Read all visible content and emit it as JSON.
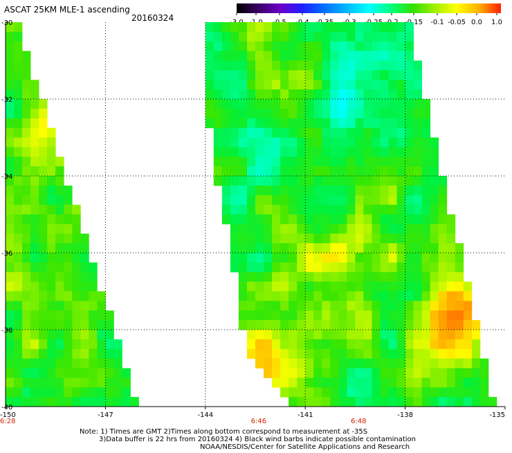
{
  "chart_data": {
    "type": "heatmap",
    "title": "ASCAT 25KM MLE-1 ascending",
    "date": "20160324",
    "colorbar": {
      "tick_labels": [
        "-3.0",
        "-1.0",
        "-0.5",
        "-0.4",
        "-0.35",
        "-0.3",
        "-0.25",
        "-0.2",
        "-0.15",
        "-0.1",
        "-0.05",
        "0.0",
        "1.0"
      ],
      "colors": [
        "#000000",
        "#3b0066",
        "#6a00c8",
        "#2020ff",
        "#0070ff",
        "#00b8ff",
        "#00ffff",
        "#00ff80",
        "#30e000",
        "#a0f000",
        "#ffff00",
        "#ffb000",
        "#ff2000"
      ]
    },
    "x_axis": {
      "range": [
        -150,
        -135
      ],
      "tick_labels": [
        "-150",
        "-147",
        "-144",
        "-141",
        "-138",
        "-135"
      ],
      "tick_values": [
        -150,
        -147,
        -144,
        -141,
        -138,
        -135
      ]
    },
    "y_axis": {
      "range": [
        -40,
        -30
      ],
      "tick_labels": [
        "-30",
        "-32",
        "-34",
        "-36",
        "-38",
        "-40"
      ],
      "tick_values": [
        -30,
        -32,
        -34,
        -36,
        -38,
        -40
      ]
    },
    "grid": true,
    "time_labels": [
      {
        "text": "6:28",
        "lon": -150
      },
      {
        "text": "6:46",
        "lon": -142.4
      },
      {
        "text": "6:48",
        "lon": -139.4
      }
    ],
    "swaths": [
      {
        "name": "west",
        "polygon": [
          [
            -150,
            -30
          ],
          [
            -149.65,
            -30
          ],
          [
            -146.0,
            -40
          ],
          [
            -150,
            -40
          ]
        ]
      },
      {
        "name": "east",
        "polygon": [
          [
            -144,
            -30
          ],
          [
            -137.9,
            -30
          ],
          [
            -135.3,
            -40
          ],
          [
            -141.5,
            -40
          ],
          [
            -142.8,
            -38.5
          ],
          [
            -143.2,
            -36
          ],
          [
            -143.7,
            -34
          ],
          [
            -144,
            -32
          ]
        ]
      }
    ],
    "value_field_description": "Gridded MLE values mostly between -0.25 and -0.05 (cyan to green to yellow); cyan region near -139.5 to -138.5 at -31, yellow/orange patches near -137 at -37 and -141.5 at -39 and -143 at -40"
  },
  "footer": {
    "line1": "Note: 1) Times are GMT 2)Times along bottom correspond to measurement at -35S",
    "line2": "3)Data buffer is 22 hrs from 20160324 4) Black wind barbs indicate possible contamination",
    "line3": "NOAA/NESDIS/Center for Satellite Applications and Research"
  }
}
